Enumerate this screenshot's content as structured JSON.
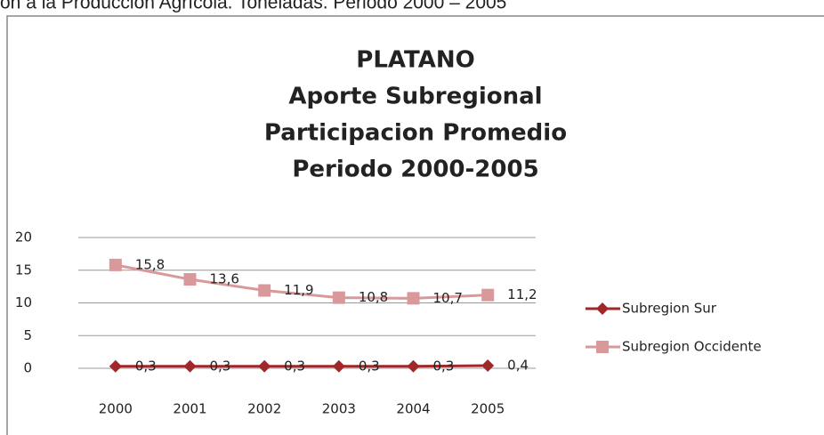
{
  "header": "ón a la Producción Agrícola.   Toneladas.  Periodo 2000 – 2005",
  "chart_data": {
    "type": "line",
    "title": [
      "PLATANO",
      "Aporte Subregional",
      "Participacion Promedio",
      "Periodo 2000-2005"
    ],
    "categories": [
      "2000",
      "2001",
      "2002",
      "2003",
      "2004",
      "2005"
    ],
    "series": [
      {
        "name": "Subregion Sur",
        "color": "#a0282a",
        "marker": "diamond",
        "values": [
          0.3,
          0.3,
          0.3,
          0.3,
          0.3,
          0.4
        ],
        "value_labels": [
          "0,3",
          "0,3",
          "0,3",
          "0,3",
          "0,3",
          "0,4"
        ]
      },
      {
        "name": "Subregion Occidente",
        "color": "#d9999a",
        "marker": "square",
        "values": [
          15.8,
          13.6,
          11.9,
          10.8,
          10.7,
          11.2
        ],
        "value_labels": [
          "15,8",
          "13,6",
          "11,9",
          "10,8",
          "10,7",
          "11,2"
        ]
      }
    ],
    "ylim": [
      0,
      20
    ],
    "yticks": [
      0,
      5,
      10,
      15,
      20
    ],
    "grid": true,
    "legend": "right"
  }
}
